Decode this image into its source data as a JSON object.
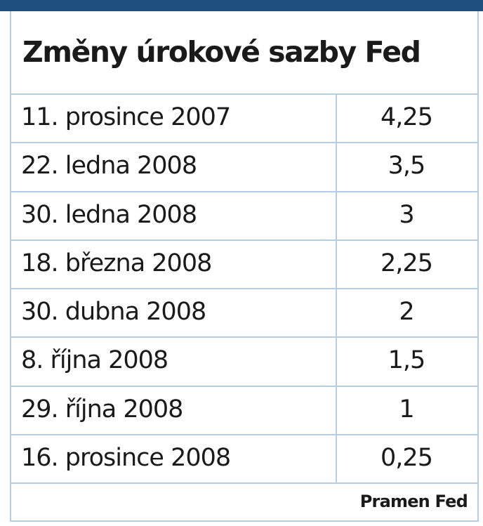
{
  "header": {
    "title": "Změny úrokové sazby Fed"
  },
  "table": {
    "rows": [
      [
        "11. prosince 2007",
        "4,25"
      ],
      [
        "22. ledna 2008",
        "3,5"
      ],
      [
        "30. ledna 2008",
        "3"
      ],
      [
        "18. března 2008",
        "2,25"
      ],
      [
        "30. dubna 2008",
        "2"
      ],
      [
        "8. října 2008",
        "1,5"
      ],
      [
        "29. října 2008",
        "1"
      ],
      [
        "16. prosince 2008",
        "0,25"
      ]
    ]
  },
  "footer": {
    "source": "Pramen Fed"
  }
}
